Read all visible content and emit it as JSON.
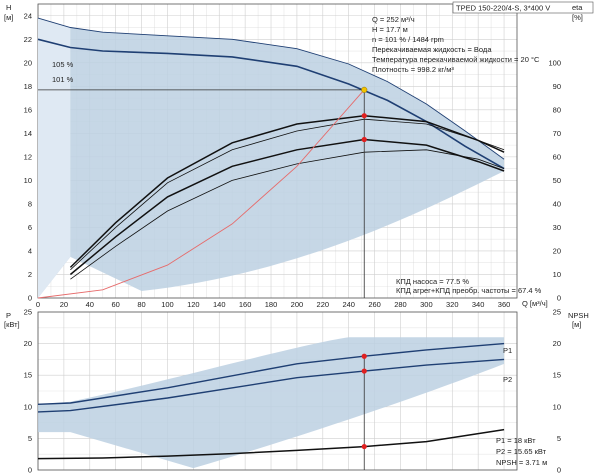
{
  "title": "TPED 150-220/4-S, 3*400 V",
  "colors": {
    "band": "#bcd0e2",
    "band_light": "#dfe9f3",
    "curve_dark": "#1f3f73",
    "curve_black": "#111111",
    "system_curve": "#e66b6b",
    "marker": "#e02020",
    "duty_marker": "#f2c200"
  },
  "upper_info": [
    "Q = 252 м³/ч",
    "H = 17.7 м",
    "n = 101 % / 1484 rpm",
    "Перекачиваемая жидкость = Вода",
    "Температура перекачиваемой жидкости = 20 °C",
    "Плотность = 998.2 кг/м³"
  ],
  "upper_eff_info": [
    "КПД насоса = 77.5 %",
    "КПД агрег+КПД преобр. частоты = 67.4 %"
  ],
  "lower_info": [
    "P1 = 18 кВт",
    "P2 = 15.65 кВт",
    "NPSH = 3.71 м"
  ],
  "chart_data": [
    {
      "type": "line",
      "panel": "head-efficiency",
      "xlabel": "Q [м³/ч]",
      "ylabel": "H [м]",
      "y2label": "eta [%]",
      "xlim": [
        0,
        370
      ],
      "ylim": [
        0,
        25
      ],
      "y2lim": [
        0,
        125
      ],
      "x_ticks": [
        0,
        20,
        40,
        60,
        80,
        100,
        120,
        140,
        160,
        180,
        200,
        220,
        240,
        260,
        280,
        300,
        320,
        340,
        360
      ],
      "y_ticks": [
        0,
        2,
        4,
        6,
        8,
        10,
        12,
        14,
        16,
        18,
        20,
        22,
        24
      ],
      "y2_ticks": [
        0,
        10,
        20,
        30,
        40,
        50,
        60,
        70,
        80,
        90,
        100
      ],
      "grid": true,
      "speed_labels": [
        "105 %",
        "101 %"
      ],
      "head_curves": [
        {
          "name": "105 %",
          "x": [
            0,
            25,
            50,
            100,
            150,
            200,
            240,
            270,
            300,
            330,
            360
          ],
          "y": [
            23.8,
            23.0,
            22.6,
            22.3,
            22.0,
            21.2,
            19.9,
            18.4,
            16.5,
            14.2,
            11.8
          ]
        },
        {
          "name": "101 %",
          "x": [
            0,
            25,
            50,
            100,
            150,
            200,
            240,
            270,
            300,
            330,
            360
          ],
          "y": [
            22.0,
            21.3,
            21.0,
            20.8,
            20.5,
            19.7,
            18.2,
            16.8,
            15.0,
            12.9,
            11.0
          ]
        }
      ],
      "efficiency_curves": [
        {
          "x": [
            25,
            60,
            100,
            150,
            200,
            252,
            300,
            340,
            360
          ],
          "y": [
            13,
            32,
            51,
            66,
            74,
            77.5,
            75,
            67,
            62
          ]
        },
        {
          "x": [
            25,
            60,
            100,
            150,
            200,
            252,
            300,
            340,
            360
          ],
          "y": [
            12,
            30,
            49,
            63,
            71,
            76,
            74,
            67,
            63
          ]
        },
        {
          "x": [
            25,
            60,
            100,
            150,
            200,
            252,
            300,
            340,
            360
          ],
          "y": [
            10,
            26,
            43,
            56,
            63,
            67.4,
            65,
            58,
            54
          ]
        },
        {
          "x": [
            25,
            60,
            100,
            150,
            200,
            252,
            300,
            340,
            360
          ],
          "y": [
            8,
            22,
            37,
            50,
            57,
            62,
            63,
            59,
            55
          ]
        }
      ],
      "system_curve": {
        "x": [
          0,
          50,
          100,
          150,
          200,
          252
        ],
        "y": [
          0,
          0.7,
          2.8,
          6.3,
          11.2,
          17.7
        ]
      },
      "duty_point": {
        "q": 252,
        "h": 17.7,
        "eta_pump": 77.5,
        "eta_total": 67.4
      }
    },
    {
      "type": "line",
      "panel": "power-npsh",
      "ylabel": "P [кВт]",
      "y2label": "NPSH [м]",
      "xlim": [
        0,
        370
      ],
      "ylim": [
        0,
        25
      ],
      "y2_ticks": [
        0,
        5,
        10,
        15,
        20,
        25
      ],
      "y_ticks": [
        0,
        5,
        10,
        15,
        20,
        25
      ],
      "grid": true,
      "series_labels": [
        "P1",
        "P2"
      ],
      "power_curves": [
        {
          "name": "P1",
          "x": [
            0,
            25,
            100,
            200,
            252,
            300,
            360
          ],
          "y": [
            10.4,
            10.6,
            13.0,
            16.8,
            18.0,
            19.0,
            20.0
          ]
        },
        {
          "name": "P2",
          "x": [
            0,
            25,
            100,
            200,
            252,
            300,
            360
          ],
          "y": [
            9.2,
            9.4,
            11.4,
            14.6,
            15.65,
            16.6,
            17.5
          ]
        }
      ],
      "npsh_curve": {
        "x": [
          0,
          50,
          100,
          150,
          200,
          252,
          300,
          360
        ],
        "y": [
          1.8,
          1.9,
          2.2,
          2.6,
          3.1,
          3.71,
          4.5,
          6.4
        ]
      },
      "duty_point": {
        "q": 252,
        "p1": 18,
        "p2": 15.65,
        "npsh": 3.71
      }
    }
  ]
}
